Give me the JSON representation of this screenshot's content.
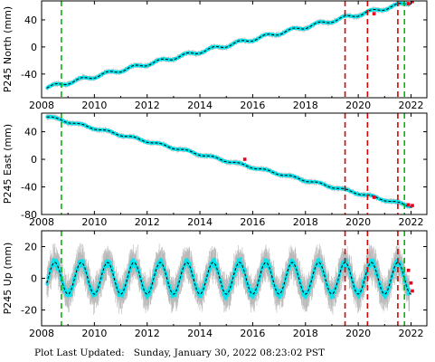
{
  "footer": {
    "label": "Plot Last Updated:",
    "timestamp": "Sunday, January 30, 2022 08:23:02 PST"
  },
  "colors": {
    "observations": "#00e5ee",
    "error_bars": "#b8b8b8",
    "model_fit": "#000000",
    "outliers": "#e8001c",
    "equipment_change": "#00bb00",
    "earthquake": "#dd0000"
  },
  "chart_data": [
    {
      "type": "scatter",
      "ylabel": "P245 North (mm)",
      "xlim": [
        2008,
        2022.6
      ],
      "ylim": [
        -75,
        68
      ],
      "x_ticks": [
        2008,
        2010,
        2012,
        2014,
        2016,
        2018,
        2020,
        2022
      ],
      "y_ticks": [
        -40,
        0,
        40
      ],
      "x_tick_labels": [
        "2008",
        "2010",
        "2012",
        "2014",
        "2016",
        "2018",
        "2020",
        "2022"
      ],
      "trend": {
        "x": [
          2008.2,
          2022.1
        ],
        "y": [
          -60,
          67
        ]
      },
      "seasonal_amplitude": 2.5,
      "error": 3,
      "green_lines": [
        2008.75,
        2021.75
      ],
      "red_lines": [
        2019.5,
        2020.35,
        2021.5
      ],
      "outliers": [
        {
          "x": 2020.6,
          "y": 49
        },
        {
          "x": 2021.9,
          "y": 64
        },
        {
          "x": 2022.05,
          "y": 67
        }
      ]
    },
    {
      "type": "scatter",
      "ylabel": "P245 East (mm)",
      "xlim": [
        2008,
        2022.6
      ],
      "ylim": [
        -80,
        67
      ],
      "x_ticks": [
        2008,
        2010,
        2012,
        2014,
        2016,
        2018,
        2020,
        2022
      ],
      "y_ticks": [
        -80,
        -40,
        0,
        40
      ],
      "x_tick_labels": [
        "2008",
        "2010",
        "2012",
        "2014",
        "2016",
        "2018",
        "2020",
        "2022"
      ],
      "trend": {
        "x": [
          2008.2,
          2022.1
        ],
        "y": [
          62,
          -69
        ]
      },
      "seasonal_amplitude": 1.5,
      "error": 3,
      "green_lines": [
        2008.75,
        2021.75
      ],
      "red_lines": [
        2019.5,
        2020.35,
        2021.5
      ],
      "outliers": [
        {
          "x": 2015.7,
          "y": 0
        },
        {
          "x": 2020.6,
          "y": -55
        },
        {
          "x": 2021.9,
          "y": -66
        },
        {
          "x": 2022.05,
          "y": -67
        }
      ]
    },
    {
      "type": "scatter",
      "ylabel": "P245 Up (mm)",
      "xlim": [
        2008,
        2022.6
      ],
      "ylim": [
        -30,
        30
      ],
      "x_ticks": [
        2008,
        2010,
        2012,
        2014,
        2016,
        2018,
        2020,
        2022
      ],
      "y_ticks": [
        -20,
        0,
        20
      ],
      "x_tick_labels": [
        "2008",
        "2010",
        "2012",
        "2014",
        "2016",
        "2018",
        "2020",
        "2022"
      ],
      "trend": {
        "x": [
          2008.2,
          2022.1
        ],
        "y": [
          0,
          0
        ]
      },
      "seasonal_amplitude": 10,
      "error": 8,
      "green_lines": [
        2008.75,
        2021.75
      ],
      "red_lines": [
        2019.5,
        2020.35,
        2021.5
      ],
      "outliers": [
        {
          "x": 2021.9,
          "y": 5
        },
        {
          "x": 2022.0,
          "y": -3
        },
        {
          "x": 2022.05,
          "y": -8
        }
      ]
    }
  ]
}
